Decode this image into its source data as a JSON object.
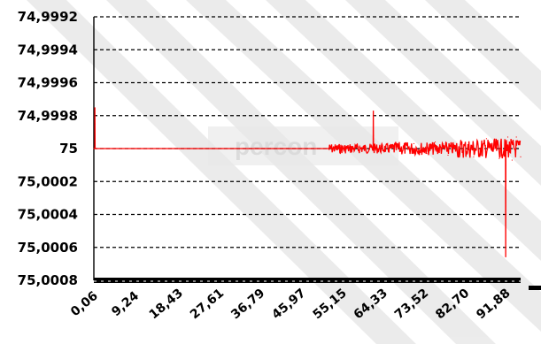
{
  "chart_data": {
    "type": "line",
    "title": "",
    "xlabel": "",
    "ylabel": "",
    "x_tick_labels": [
      "0,06",
      "9,24",
      "18,43",
      "27,61",
      "36,79",
      "45,97",
      "55,15",
      "64,33",
      "73,52",
      "82,70",
      "91,88"
    ],
    "y_tick_labels": [
      "74,9992",
      "74,9994",
      "74,9996",
      "74,9998",
      "75",
      "75,0002",
      "75,0004",
      "75,0006",
      "75,0008"
    ],
    "y_axis_inverted": true,
    "ylim": [
      74.9992,
      75.0008
    ],
    "xlim": [
      0.06,
      100
    ],
    "grid": "horizontal dashed",
    "watermark_text": "percon",
    "series": [
      {
        "color": "#ff0000",
        "points": [
          [
            0.06,
            75.0
          ],
          [
            0.3,
            74.99985
          ],
          [
            0.6,
            75.0
          ],
          [
            5,
            75.0
          ],
          [
            10,
            75.0
          ],
          [
            20,
            75.0
          ],
          [
            30,
            75.0
          ],
          [
            40,
            75.0
          ],
          [
            50,
            75.0
          ],
          [
            55,
            75.0
          ],
          [
            60,
            75.00001
          ],
          [
            62,
            74.99999
          ],
          [
            64,
            75.0
          ],
          [
            65.5,
            74.99992
          ],
          [
            66,
            75.0
          ],
          [
            68,
            75.00002
          ],
          [
            70,
            74.99998
          ],
          [
            72,
            75.0
          ],
          [
            75,
            74.99997
          ],
          [
            78,
            75.00003
          ],
          [
            80,
            74.99996
          ],
          [
            83,
            75.00004
          ],
          [
            86,
            74.99995
          ],
          [
            89,
            75.00005
          ],
          [
            92,
            74.99994
          ],
          [
            95,
            75.00006
          ],
          [
            96.5,
            75.0001
          ],
          [
            97,
            74.99993
          ],
          [
            98,
            75.00007
          ],
          [
            99,
            74.99993
          ],
          [
            100,
            75.00005
          ]
        ]
      }
    ],
    "noise_band": [
      {
        "x_start": 55,
        "x_end": 70,
        "amplitude": 3e-05
      },
      {
        "x_start": 70,
        "x_end": 85,
        "amplitude": 4e-05
      },
      {
        "x_start": 85,
        "x_end": 100,
        "amplitude": 6e-05
      }
    ],
    "spikes": [
      {
        "x": 0.3,
        "y": 74.99975
      },
      {
        "x": 65.5,
        "y": 74.99977
      },
      {
        "x": 96.5,
        "y": 75.00066
      }
    ]
  },
  "colors": {
    "grid": "#000000",
    "series": "#ff0000",
    "watermark_stripe": "#d4d4d4"
  }
}
